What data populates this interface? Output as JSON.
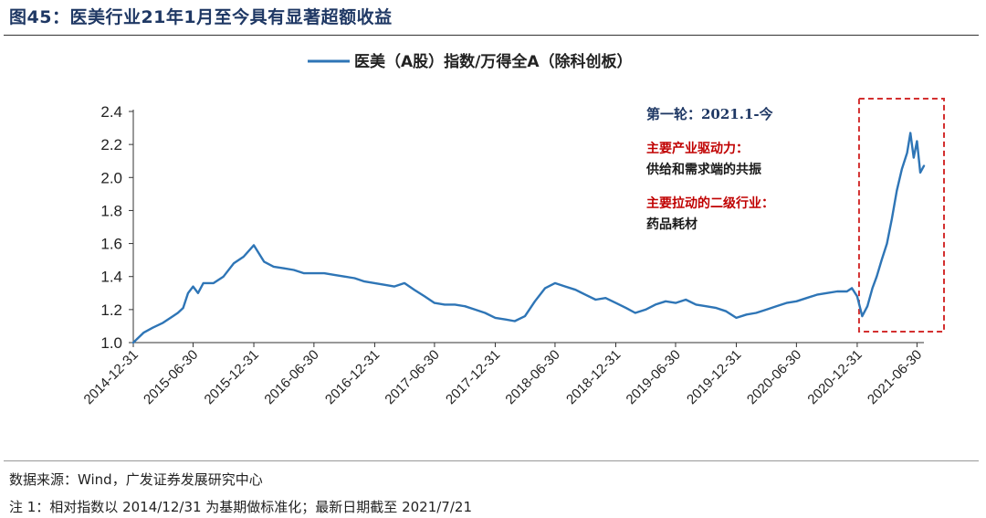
{
  "figure": {
    "title": "图45：医美行业21年1月至今具有显著超额收益",
    "source": "数据来源：Wind，广发证券发展研究中心",
    "note": "注 1：相对指数以 2014/12/31 为基期做标准化；最新日期截至 2021/7/21"
  },
  "colors": {
    "series": "#2e75b6",
    "highlight_box": "#d32f2f",
    "annotation_title": "#1f3864",
    "annotation_label": "#c00000",
    "annotation_text": "#1a1a1a",
    "axis": "#333333"
  },
  "chart_data": {
    "type": "line",
    "title": "",
    "xlabel": "",
    "ylabel": "",
    "ylim": [
      1.0,
      2.4
    ],
    "yticks": [
      1.0,
      1.2,
      1.4,
      1.6,
      1.8,
      2.0,
      2.2,
      2.4
    ],
    "xlim": [
      "2014-12-31",
      "2021-07-21"
    ],
    "xticks": [
      "2014-12-31",
      "2015-06-30",
      "2015-12-31",
      "2016-06-30",
      "2016-12-31",
      "2017-06-30",
      "2017-12-31",
      "2018-06-30",
      "2018-12-31",
      "2019-06-30",
      "2019-12-31",
      "2020-06-30",
      "2020-12-31",
      "2021-06-30"
    ],
    "grid": false,
    "legend": "top",
    "series": [
      {
        "name": "医美（A股）指数/万得全A（除科创板）",
        "x": [
          "2014-12-31",
          "2015-01-31",
          "2015-02-28",
          "2015-03-31",
          "2015-04-30",
          "2015-05-15",
          "2015-05-31",
          "2015-06-15",
          "2015-06-30",
          "2015-07-15",
          "2015-07-31",
          "2015-08-31",
          "2015-09-30",
          "2015-10-31",
          "2015-11-30",
          "2015-12-31",
          "2016-01-31",
          "2016-02-29",
          "2016-03-31",
          "2016-04-30",
          "2016-05-31",
          "2016-06-30",
          "2016-07-31",
          "2016-08-31",
          "2016-09-30",
          "2016-10-31",
          "2016-11-30",
          "2016-12-31",
          "2017-01-31",
          "2017-02-28",
          "2017-03-31",
          "2017-04-30",
          "2017-05-31",
          "2017-06-30",
          "2017-07-31",
          "2017-08-31",
          "2017-09-30",
          "2017-10-31",
          "2017-11-30",
          "2017-12-31",
          "2018-01-31",
          "2018-02-28",
          "2018-03-31",
          "2018-04-30",
          "2018-05-31",
          "2018-06-30",
          "2018-07-31",
          "2018-08-31",
          "2018-09-30",
          "2018-10-31",
          "2018-11-30",
          "2018-12-31",
          "2019-01-31",
          "2019-02-28",
          "2019-03-31",
          "2019-04-30",
          "2019-05-31",
          "2019-06-30",
          "2019-07-31",
          "2019-08-31",
          "2019-09-30",
          "2019-10-31",
          "2019-11-30",
          "2019-12-31",
          "2020-01-31",
          "2020-02-29",
          "2020-03-31",
          "2020-04-30",
          "2020-05-31",
          "2020-06-30",
          "2020-07-31",
          "2020-08-31",
          "2020-09-30",
          "2020-10-31",
          "2020-11-30",
          "2020-12-15",
          "2020-12-31",
          "2021-01-15",
          "2021-01-31",
          "2021-02-15",
          "2021-02-28",
          "2021-03-15",
          "2021-03-31",
          "2021-04-15",
          "2021-04-30",
          "2021-05-15",
          "2021-05-31",
          "2021-06-10",
          "2021-06-20",
          "2021-06-30",
          "2021-07-10",
          "2021-07-21"
        ],
        "values": [
          1.0,
          1.06,
          1.09,
          1.12,
          1.16,
          1.18,
          1.21,
          1.3,
          1.34,
          1.3,
          1.36,
          1.36,
          1.4,
          1.48,
          1.52,
          1.59,
          1.49,
          1.46,
          1.45,
          1.44,
          1.42,
          1.42,
          1.42,
          1.41,
          1.4,
          1.39,
          1.37,
          1.36,
          1.35,
          1.34,
          1.36,
          1.32,
          1.28,
          1.24,
          1.23,
          1.23,
          1.22,
          1.2,
          1.18,
          1.15,
          1.14,
          1.13,
          1.16,
          1.25,
          1.33,
          1.36,
          1.34,
          1.32,
          1.29,
          1.26,
          1.27,
          1.24,
          1.21,
          1.18,
          1.2,
          1.23,
          1.25,
          1.24,
          1.26,
          1.23,
          1.22,
          1.21,
          1.19,
          1.15,
          1.17,
          1.18,
          1.2,
          1.22,
          1.24,
          1.25,
          1.27,
          1.29,
          1.3,
          1.31,
          1.31,
          1.33,
          1.28,
          1.16,
          1.22,
          1.33,
          1.4,
          1.5,
          1.6,
          1.75,
          1.92,
          2.05,
          2.15,
          2.27,
          2.12,
          2.22,
          2.03,
          2.07
        ]
      }
    ],
    "annotations": {
      "round_title": "第一轮：2021.1-今",
      "driver_label": "主要产业驱动力：",
      "driver_text": "供给和需求端的共振",
      "industry_label": "主要拉动的二级行业：",
      "industry_text": "药品耗材"
    },
    "highlight": {
      "x_start": "2020-12-31",
      "x_end": "2021-07-21",
      "style": "dashed-box"
    }
  }
}
